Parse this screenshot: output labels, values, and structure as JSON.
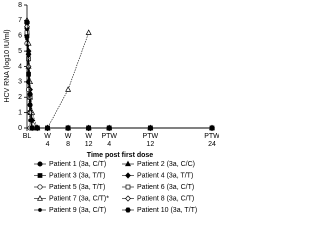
{
  "chart_data": {
    "type": "line",
    "ylabel": "HCV RNA (log10 IU/ml)",
    "xlabel": "Time post first dose",
    "x": [
      0,
      0.3,
      0.6,
      1,
      2,
      4,
      8,
      12,
      16,
      24,
      36
    ],
    "xlim": [
      0,
      36
    ],
    "xticks": [
      {
        "value": 0,
        "label": "BL"
      },
      {
        "value": 4,
        "label": "W\n4"
      },
      {
        "value": 8,
        "label": "W\n8"
      },
      {
        "value": 12,
        "label": "W\n12"
      },
      {
        "value": 16,
        "label": "PTW\n4"
      },
      {
        "value": 24,
        "label": "PTW\n12"
      },
      {
        "value": 36,
        "label": "PTW\n24"
      }
    ],
    "ylim": [
      0,
      8
    ],
    "yticks": [
      0,
      1,
      2,
      3,
      4,
      5,
      6,
      7,
      8
    ],
    "series": [
      {
        "name": "Patient 1 (3a, C/T)",
        "color": "#000000",
        "marker": "circle",
        "filled": true,
        "values": [
          6.5,
          3,
          1.5,
          0,
          0,
          0,
          0,
          0,
          0,
          0,
          0
        ]
      },
      {
        "name": "Patient 2 (3a, C/C)",
        "color": "#000000",
        "marker": "triangle",
        "filled": true,
        "values": [
          7,
          4,
          2,
          0,
          0,
          0,
          0,
          0,
          0,
          0,
          0
        ]
      },
      {
        "name": "Patient 3 (3a, T/T)",
        "color": "#000000",
        "marker": "square",
        "filled": true,
        "values": [
          6,
          3.5,
          1,
          0,
          0,
          0,
          0,
          0,
          0,
          0,
          null
        ]
      },
      {
        "name": "Patient 4 (3a, T/T)",
        "color": "#000000",
        "marker": "diamond",
        "filled": true,
        "values": [
          6.8,
          5,
          2.5,
          0.5,
          0,
          0,
          0,
          0,
          0,
          0,
          0
        ]
      },
      {
        "name": "Patient 5 (3a, T/T)",
        "color": "#000000",
        "marker": "circle",
        "filled": false,
        "values": [
          5.5,
          2.5,
          0,
          0,
          0,
          0,
          0,
          0,
          0,
          null,
          null
        ]
      },
      {
        "name": "Patient 6 (3a, C/T)",
        "color": "#000000",
        "marker": "square",
        "filled": false,
        "values": [
          6.2,
          4.5,
          2,
          0,
          0,
          0,
          0,
          0,
          0,
          0,
          0
        ]
      },
      {
        "name": "Patient 7 (3a, C/T)*",
        "color": "#000000",
        "marker": "triangle",
        "filled": false,
        "values": [
          7,
          5.5,
          3,
          1,
          0,
          0,
          2.5,
          6.2,
          null,
          null,
          null
        ]
      },
      {
        "name": "Patient 8 (3a, C/T)",
        "color": "#000000",
        "marker": "diamond",
        "filled": false,
        "values": [
          6.6,
          4,
          1,
          0,
          0,
          0,
          0,
          0,
          0,
          0,
          0
        ]
      },
      {
        "name": "Patient 9 (3a, C/T)",
        "color": "#000000",
        "marker": "dot",
        "filled": true,
        "values": [
          5.8,
          3,
          0.5,
          0,
          0,
          0,
          0,
          0,
          0,
          0,
          null
        ]
      },
      {
        "name": "Patient 10 (3a, T/T)",
        "color": "#000000",
        "marker": "hex",
        "filled": true,
        "values": [
          6.9,
          4.8,
          2.2,
          0,
          0,
          0,
          0,
          0,
          0,
          0,
          0
        ]
      }
    ]
  }
}
